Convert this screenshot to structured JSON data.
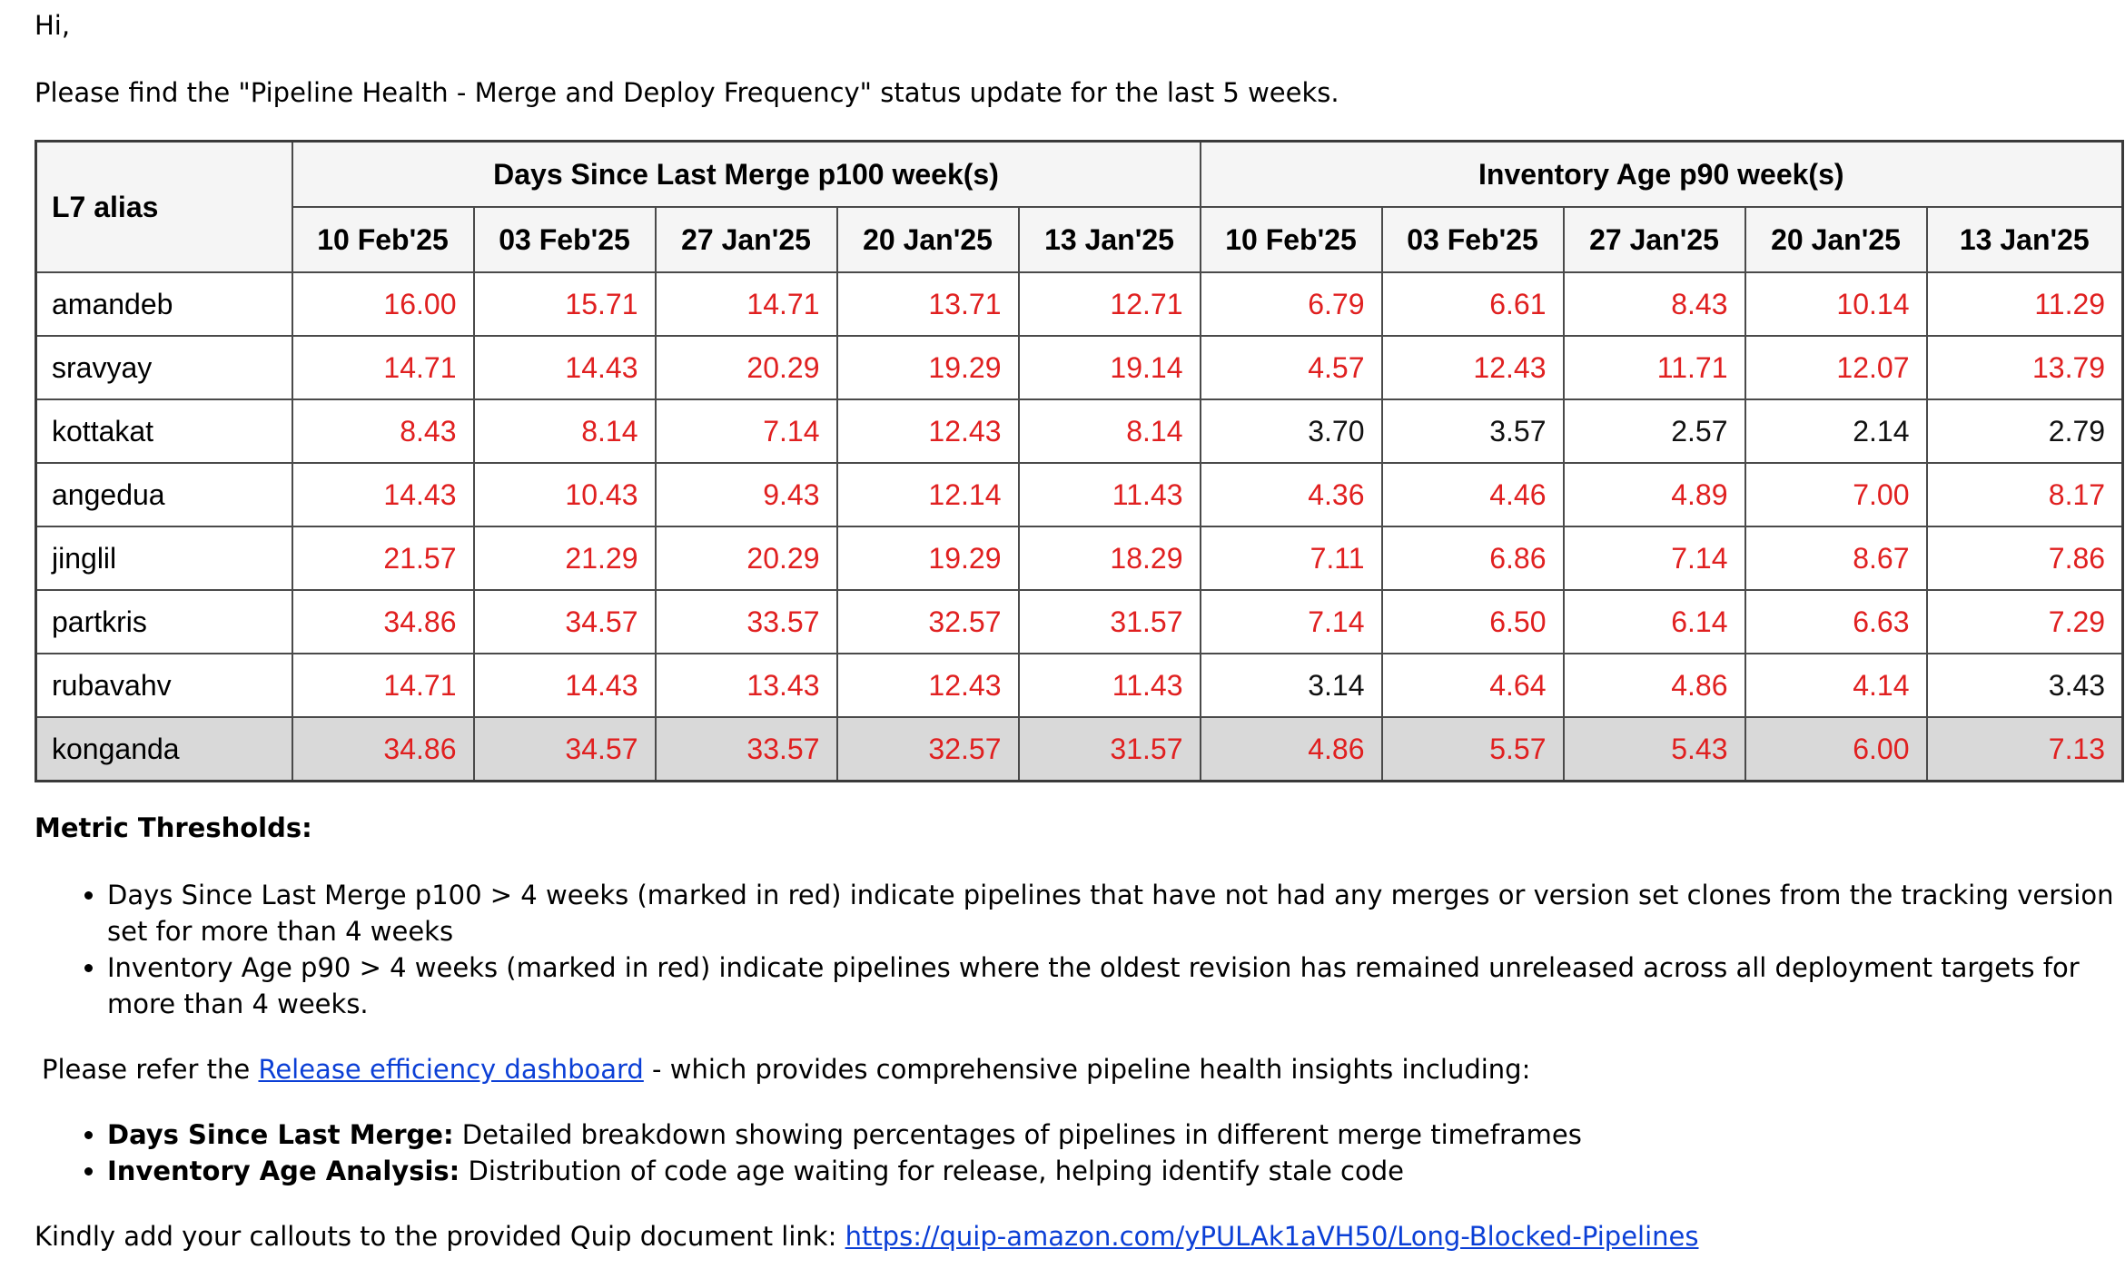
{
  "greeting": "Hi,",
  "intro": "Please find the \"Pipeline Health - Merge and Deploy Frequency\" status update for the last 5 weeks.",
  "table": {
    "alias_header": "L7 alias",
    "group1": "Days Since Last Merge p100 week(s)",
    "group2": "Inventory Age p90 week(s)",
    "weeks": [
      "10 Feb'25",
      "03 Feb'25",
      "27 Jan'25",
      "20 Jan'25",
      "13 Jan'25"
    ],
    "rows": [
      {
        "alias": "amandeb",
        "merge": [
          "16.00",
          "15.71",
          "14.71",
          "13.71",
          "12.71"
        ],
        "inventory": [
          "6.79",
          "6.61",
          "8.43",
          "10.14",
          "11.29"
        ]
      },
      {
        "alias": "sravyay",
        "merge": [
          "14.71",
          "14.43",
          "20.29",
          "19.29",
          "19.14"
        ],
        "inventory": [
          "4.57",
          "12.43",
          "11.71",
          "12.07",
          "13.79"
        ]
      },
      {
        "alias": "kottakat",
        "merge": [
          "8.43",
          "8.14",
          "7.14",
          "12.43",
          "8.14"
        ],
        "inventory": [
          "3.70",
          "3.57",
          "2.57",
          "2.14",
          "2.79"
        ]
      },
      {
        "alias": "angedua",
        "merge": [
          "14.43",
          "10.43",
          "9.43",
          "12.14",
          "11.43"
        ],
        "inventory": [
          "4.36",
          "4.46",
          "4.89",
          "7.00",
          "8.17"
        ]
      },
      {
        "alias": "jinglil",
        "merge": [
          "21.57",
          "21.29",
          "20.29",
          "19.29",
          "18.29"
        ],
        "inventory": [
          "7.11",
          "6.86",
          "7.14",
          "8.67",
          "7.86"
        ]
      },
      {
        "alias": "partkris",
        "merge": [
          "34.86",
          "34.57",
          "33.57",
          "32.57",
          "31.57"
        ],
        "inventory": [
          "7.14",
          "6.50",
          "6.14",
          "6.63",
          "7.29"
        ]
      },
      {
        "alias": "rubavahv",
        "merge": [
          "14.71",
          "14.43",
          "13.43",
          "12.43",
          "11.43"
        ],
        "inventory": [
          "3.14",
          "4.64",
          "4.86",
          "4.14",
          "3.43"
        ]
      },
      {
        "alias": "konganda",
        "merge": [
          "34.86",
          "34.57",
          "33.57",
          "32.57",
          "31.57"
        ],
        "inventory": [
          "4.86",
          "5.57",
          "5.43",
          "6.00",
          "7.13"
        ]
      }
    ],
    "red_threshold": 4,
    "colors": {
      "red": "#e02020",
      "normal": "#111111",
      "header_bg": "#f5f5f5",
      "last_row_bg": "#d9d9d9"
    }
  },
  "thresholds": {
    "heading": "Metric Thresholds:",
    "items": [
      "Days Since Last Merge p100 > 4 weeks (marked in red) indicate pipelines that have not had any merges or version set clones from the tracking version set for more than 4 weeks",
      "Inventory Age p90 > 4 weeks (marked in red) indicate pipelines where the oldest revision has remained unreleased across all deployment targets for more than 4 weeks."
    ]
  },
  "refer": {
    "prefix": "Please refer the ",
    "link_text": "Release efficiency dashboard",
    "suffix": " - which provides comprehensive pipeline health insights including:"
  },
  "insights": [
    {
      "label": "Days Since Last Merge:",
      "text": " Detailed breakdown showing percentages of pipelines in different merge timeframes"
    },
    {
      "label": "Inventory Age Analysis:",
      "text": " Distribution of code age waiting for release, helping identify stale code"
    }
  ],
  "kindly": {
    "prefix": "Kindly add your callouts to the provided Quip document link: ",
    "link": "https://quip-amazon.com/yPULAk1aVH50/Long-Blocked-Pipelines"
  }
}
